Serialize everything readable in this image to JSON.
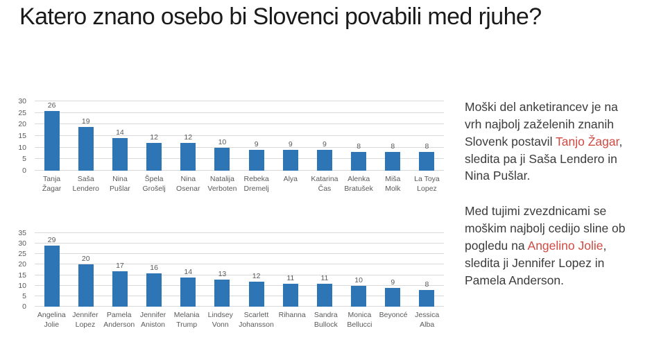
{
  "slide": {
    "title": "Katero znano osebo bi Slovenci povabili med rjuhe?"
  },
  "colors": {
    "bar_blue": "#2e75b6",
    "accent_red": "#d04a42",
    "title_text": "#1a1a1a",
    "body_text": "#3b3b3b",
    "axis_text": "#595959",
    "gridline": "#d9d9d9"
  },
  "chart_data": [
    {
      "type": "bar",
      "categories": [
        "Tanja Žagar",
        "Saša Lendero",
        "Nina Pušlar",
        "Špela Grošelj",
        "Nina Osenar",
        "Natalija Verboten",
        "Rebeka Dremelj",
        "Alya",
        "Katarina Čas",
        "Alenka Bratušek",
        "Miša Molk",
        "La Toya Lopez"
      ],
      "values": [
        26,
        19,
        14,
        12,
        12,
        10,
        9,
        9,
        9,
        8,
        8,
        8
      ],
      "ylim": [
        0,
        30
      ],
      "ytick_step": 5,
      "grid": true,
      "legend": "none",
      "value_labels": true
    },
    {
      "type": "bar",
      "categories": [
        "Angelina Jolie",
        "Jennifer Lopez",
        "Pamela Anderson",
        "Jennifer Aniston",
        "Melania Trump",
        "Lindsey Vonn",
        "Scarlett Johansson",
        "Rihanna",
        "Sandra Bullock",
        "Monica Bellucci",
        "Beyoncé",
        "Jessica Alba"
      ],
      "values": [
        29,
        20,
        17,
        16,
        14,
        13,
        12,
        11,
        11,
        10,
        9,
        8
      ],
      "ylim": [
        0,
        35
      ],
      "ytick_step": 5,
      "grid": true,
      "legend": "none",
      "value_labels": true
    }
  ],
  "panel": {
    "paragraphs": [
      {
        "segments": [
          {
            "text": "Moški del anketirancev je na vrh najbolj zaželenih znanih Slovenk postavil ",
            "red": false
          },
          {
            "text": "Tanjo Žagar",
            "red": true
          },
          {
            "text": ", sledita pa ji Saša Lendero in Nina Pušlar.",
            "red": false
          }
        ]
      },
      {
        "segments": [
          {
            "text": "Med tujimi zvezdnicami se moškim najbolj cedijo sline ob pogledu na ",
            "red": false
          },
          {
            "text": "Angelino Jolie",
            "red": true
          },
          {
            "text": ", sledita ji Jennifer Lopez in Pamela Anderson.",
            "red": false
          }
        ]
      }
    ]
  }
}
